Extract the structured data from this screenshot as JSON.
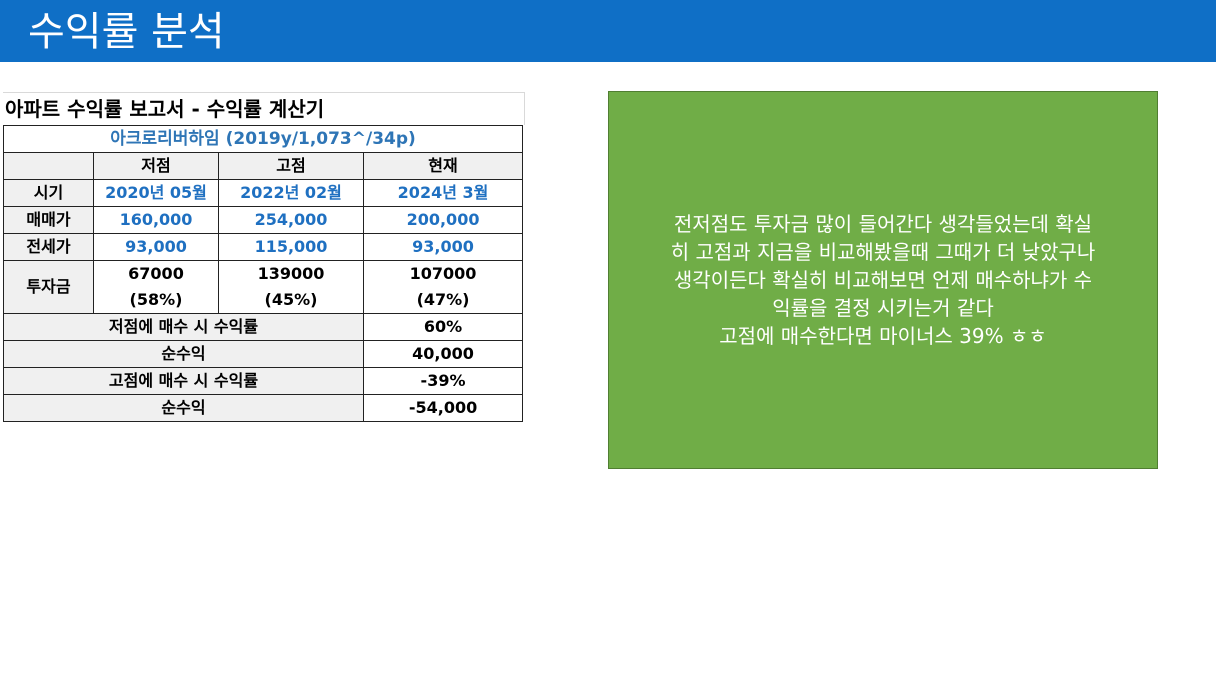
{
  "slide": {
    "title": "수익률 분석"
  },
  "report": {
    "title": "아파트 수익률 보고서 - 수익률 계산기",
    "complex": "아크로리버하임 (2019y/1,073^/34p)",
    "columns": [
      "저점",
      "고점",
      "현재"
    ],
    "rows": {
      "timing": {
        "label": "시기",
        "values": [
          "2020년 05월",
          "2022년 02월",
          "2024년 3월"
        ]
      },
      "sale_price": {
        "label": "매매가",
        "values": [
          "160,000",
          "254,000",
          "200,000"
        ]
      },
      "jeonse_price": {
        "label": "전세가",
        "values": [
          "93,000",
          "115,000",
          "93,000"
        ]
      },
      "investment": {
        "label": "투자금",
        "amounts": [
          "67000",
          "139000",
          "107000"
        ],
        "ratios": [
          "(58%)",
          "(45%)",
          "(47%)"
        ]
      }
    },
    "summary": [
      {
        "label": "저점에 매수 시 수익률",
        "value": "60%"
      },
      {
        "label": "순수익",
        "value": "40,000"
      },
      {
        "label": "고점에 매수 시 수익률",
        "value": "-39%"
      },
      {
        "label": "순수익",
        "value": "-54,000"
      }
    ]
  },
  "note": {
    "lines": [
      "전저점도 투자금 많이 들어간다 생각들었는데 확실",
      "히 고점과 지금을 비교해봤을때 그때가 더 낮았구나",
      "생각이든다 확실히 비교해보면 언제 매수하냐가 수",
      "익률을 결정 시키는거 같다",
      "고점에 매수한다면 마이너스 39% ㅎㅎ"
    ]
  },
  "colors": {
    "header_bg": "#0f6fc6",
    "note_bg": "#70ad47",
    "value_blue": "#1f70c1"
  }
}
